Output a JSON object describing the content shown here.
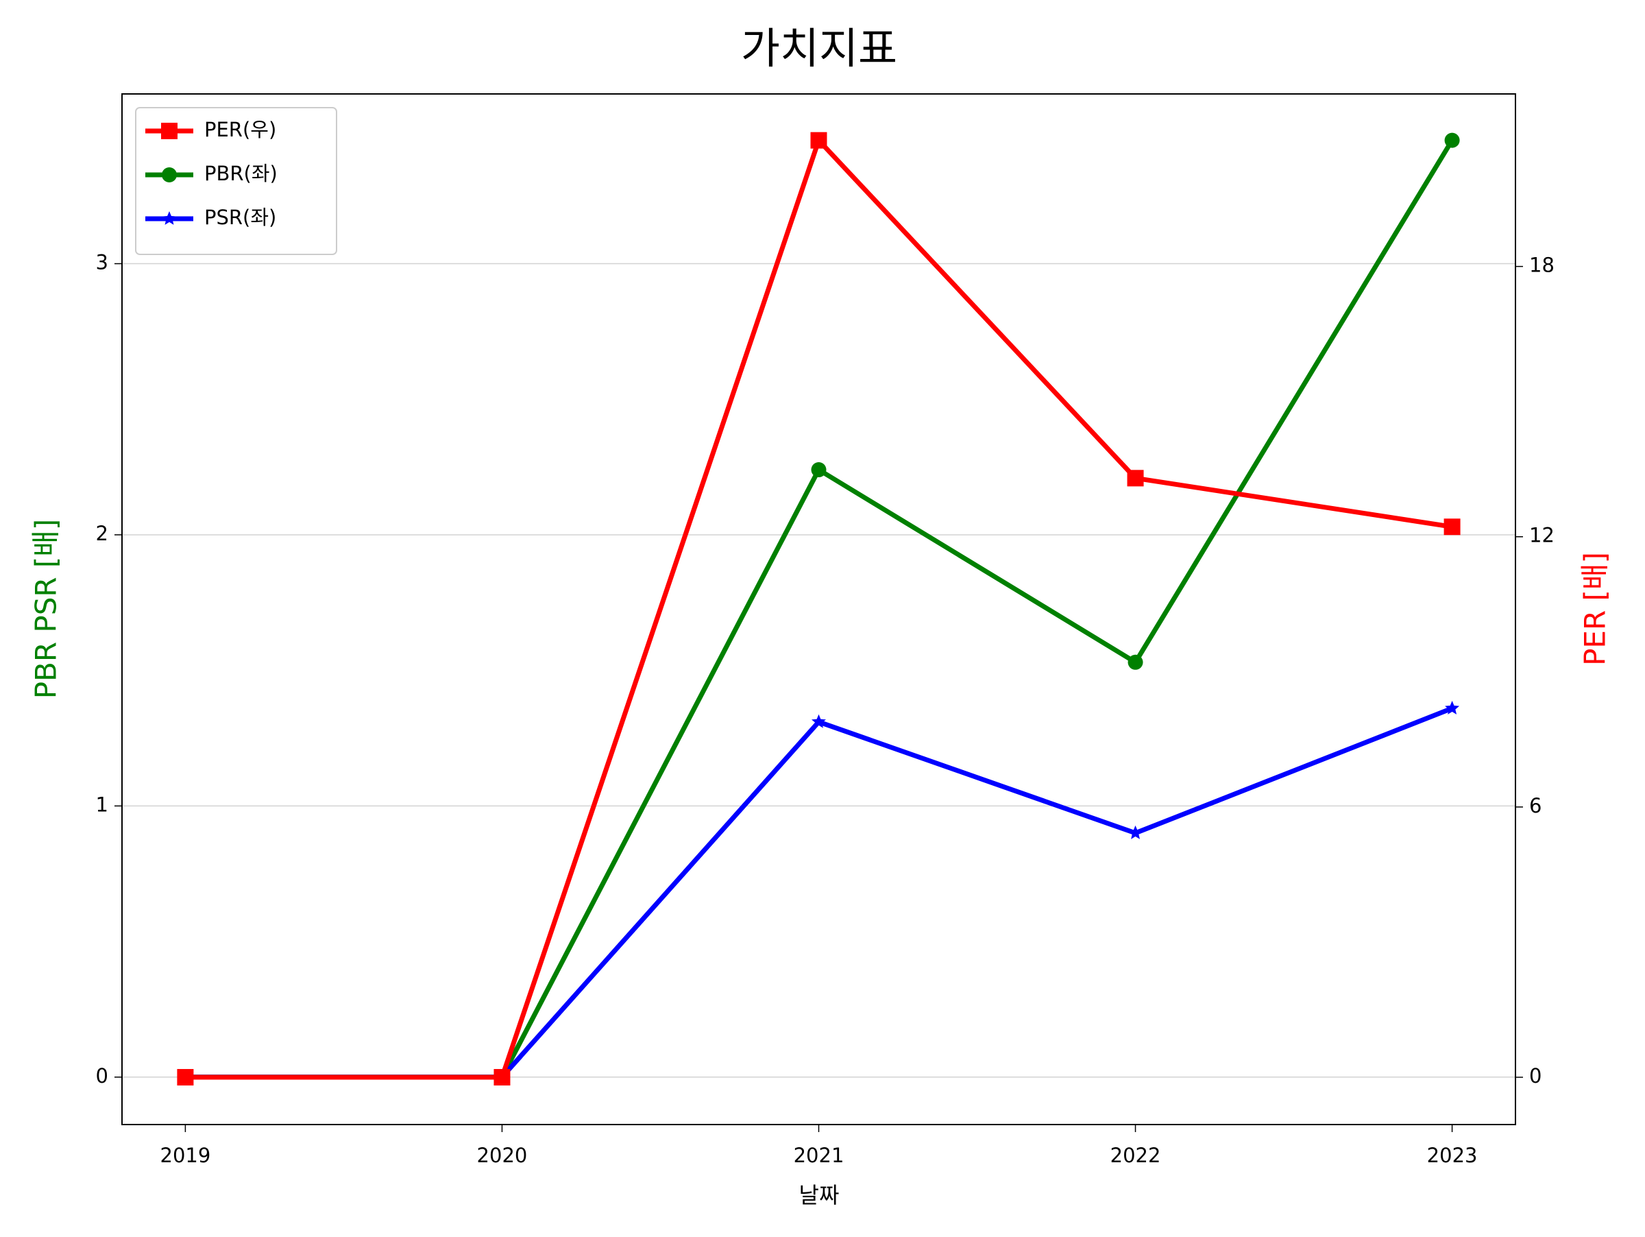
{
  "chart_data": {
    "type": "line",
    "title": "가치지표",
    "x_label": "날짜",
    "y_label": "PBR PSR [배]",
    "y2_label": "PER [배]",
    "categories": [
      "2019",
      "2020",
      "2021",
      "2022",
      "2023"
    ],
    "ylim": [
      -0.175,
      3.626
    ],
    "yticks": [
      0,
      1,
      2,
      3
    ],
    "y2lim": [
      -1.05,
      21.83
    ],
    "y2ticks": [
      0,
      6,
      12,
      18
    ],
    "grid": true,
    "legend": "upper left",
    "series": [
      {
        "name": "PER(우)",
        "color": "#ff0000",
        "marker": "square",
        "axis": "y2",
        "values": [
          0,
          0,
          20.8,
          13.3,
          12.22
        ]
      },
      {
        "name": "PBR(좌)",
        "color": "#008000",
        "marker": "circle",
        "values": [
          0,
          0,
          2.24,
          1.53,
          3.455
        ]
      },
      {
        "name": "PSR(좌)",
        "color": "#0000ff",
        "marker": "star",
        "values": [
          0,
          0,
          1.31,
          0.9,
          1.36
        ]
      }
    ]
  }
}
